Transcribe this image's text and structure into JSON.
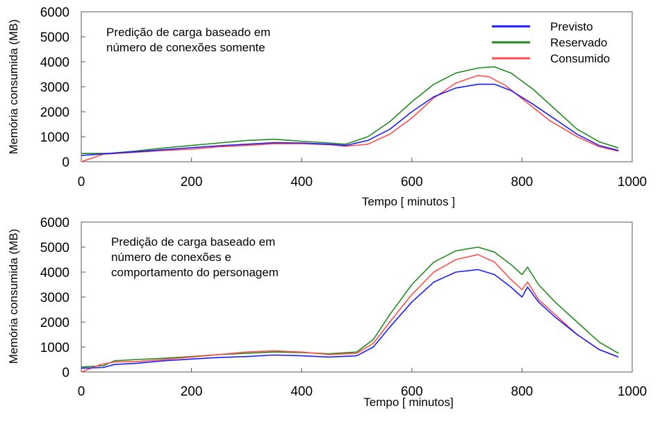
{
  "colors": {
    "previsto": "#1a1aff",
    "reservado": "#1f8a1f",
    "consumido": "#ff4d4d",
    "frame": "#555555"
  },
  "chart_data": [
    {
      "type": "line",
      "title": "",
      "annotation": [
        "Predição de carga baseado em",
        "número de conexões somente"
      ],
      "xlabel": "Tempo [ minutos ]",
      "ylabel": "Memória consumida  (MB)",
      "xlim": [
        0,
        1000
      ],
      "ylim": [
        0,
        6000
      ],
      "xticks": [
        "0",
        "200",
        "400",
        "600",
        "800",
        "1000"
      ],
      "yticks": [
        "0",
        "1000",
        "2000",
        "3000",
        "4000",
        "5000",
        "6000"
      ],
      "legend": "top-right",
      "grid": false,
      "series": [
        {
          "name": "Previsto",
          "color_key": "previsto",
          "x": [
            0,
            50,
            100,
            150,
            200,
            250,
            300,
            350,
            400,
            450,
            480,
            520,
            560,
            600,
            640,
            680,
            720,
            750,
            780,
            820,
            860,
            900,
            940,
            975
          ],
          "y": [
            250,
            330,
            400,
            480,
            560,
            640,
            700,
            760,
            750,
            700,
            650,
            850,
            1300,
            2000,
            2600,
            2950,
            3100,
            3100,
            2850,
            2300,
            1700,
            1100,
            650,
            450
          ]
        },
        {
          "name": "Reservado",
          "color_key": "reservado",
          "x": [
            0,
            50,
            100,
            150,
            200,
            250,
            300,
            350,
            400,
            450,
            480,
            520,
            560,
            600,
            640,
            680,
            720,
            750,
            780,
            820,
            860,
            900,
            940,
            975
          ],
          "y": [
            330,
            330,
            430,
            550,
            650,
            750,
            850,
            900,
            820,
            750,
            700,
            1000,
            1600,
            2400,
            3100,
            3550,
            3750,
            3800,
            3550,
            2900,
            2100,
            1300,
            800,
            550
          ]
        },
        {
          "name": "Consumido",
          "color_key": "consumido",
          "x": [
            0,
            40,
            100,
            150,
            200,
            250,
            300,
            350,
            400,
            450,
            480,
            520,
            560,
            600,
            640,
            680,
            720,
            740,
            770,
            810,
            850,
            900,
            940,
            975
          ],
          "y": [
            0,
            300,
            380,
            450,
            500,
            600,
            650,
            720,
            720,
            680,
            620,
            700,
            1100,
            1750,
            2550,
            3150,
            3450,
            3400,
            3050,
            2350,
            1650,
            1000,
            600,
            420
          ]
        }
      ]
    },
    {
      "type": "line",
      "title": "",
      "annotation": [
        "Predição de carga baseado em",
        "número de conexões  e",
        "comportamento do personagem"
      ],
      "xlabel": "Tempo [ minutos]",
      "ylabel": "Memória consumida  (MB)",
      "xlim": [
        0,
        1000
      ],
      "ylim": [
        0,
        6000
      ],
      "xticks": [
        "0",
        "200",
        "400",
        "600",
        "800",
        "1000"
      ],
      "yticks": [
        "0",
        "1000",
        "2000",
        "3000",
        "4000",
        "5000",
        "6000"
      ],
      "grid": false,
      "series": [
        {
          "name": "Previsto",
          "color_key": "previsto",
          "x": [
            0,
            40,
            60,
            100,
            150,
            200,
            250,
            300,
            350,
            400,
            450,
            500,
            530,
            560,
            600,
            640,
            680,
            720,
            750,
            780,
            800,
            810,
            830,
            860,
            900,
            940,
            975
          ],
          "y": [
            150,
            180,
            300,
            350,
            450,
            520,
            580,
            620,
            680,
            650,
            600,
            650,
            1000,
            1800,
            2800,
            3600,
            4000,
            4100,
            3900,
            3400,
            3000,
            3400,
            2800,
            2200,
            1500,
            900,
            600
          ]
        },
        {
          "name": "Reservado",
          "color_key": "reservado",
          "x": [
            0,
            40,
            60,
            100,
            150,
            200,
            250,
            300,
            350,
            400,
            450,
            500,
            530,
            560,
            600,
            640,
            680,
            720,
            750,
            780,
            800,
            810,
            830,
            860,
            900,
            940,
            975
          ],
          "y": [
            200,
            250,
            450,
            500,
            550,
            620,
            700,
            750,
            800,
            780,
            730,
            800,
            1300,
            2300,
            3500,
            4400,
            4850,
            5000,
            4800,
            4300,
            3900,
            4200,
            3500,
            2800,
            2000,
            1200,
            750
          ]
        },
        {
          "name": "Consumido",
          "color_key": "consumido",
          "x": [
            0,
            35,
            60,
            100,
            150,
            200,
            250,
            300,
            350,
            400,
            450,
            500,
            530,
            560,
            600,
            640,
            680,
            720,
            750,
            780,
            800,
            810,
            830,
            860,
            900,
            940,
            975
          ],
          "y": [
            0,
            300,
            400,
            420,
            500,
            600,
            700,
            800,
            850,
            800,
            700,
            750,
            1150,
            2000,
            3100,
            4000,
            4500,
            4700,
            4400,
            3700,
            3300,
            3600,
            2900,
            2300,
            1500,
            900,
            600
          ]
        }
      ]
    }
  ]
}
